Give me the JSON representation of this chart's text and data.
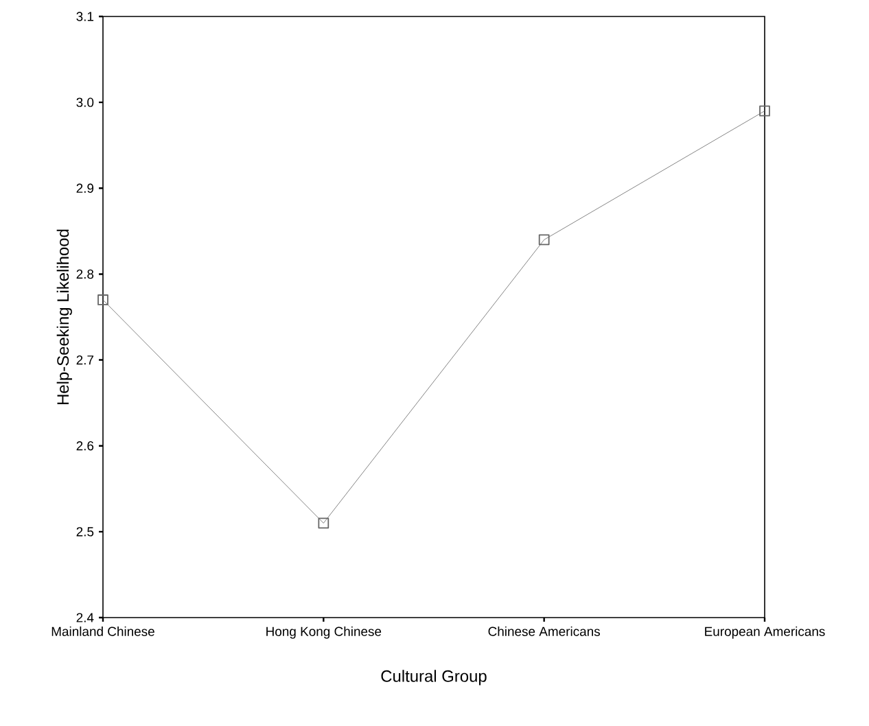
{
  "chart_data": {
    "type": "line",
    "xlabel": "Cultural Group",
    "ylabel": "Help-Seeking Likelihood",
    "categories": [
      "Mainland Chinese",
      "Hong Kong Chinese",
      "Chinese Americans",
      "European Americans"
    ],
    "values": [
      2.77,
      2.51,
      2.84,
      2.99
    ],
    "color": "#666666",
    "marker": "square",
    "line_style": "solid",
    "ylim": [
      2.4,
      3.1
    ],
    "yticks": [
      2.4,
      2.5,
      2.6,
      2.7,
      2.8,
      2.9,
      {
        "value": 3.0,
        "label": "3.0"
      },
      3.1
    ],
    "grid": false
  }
}
